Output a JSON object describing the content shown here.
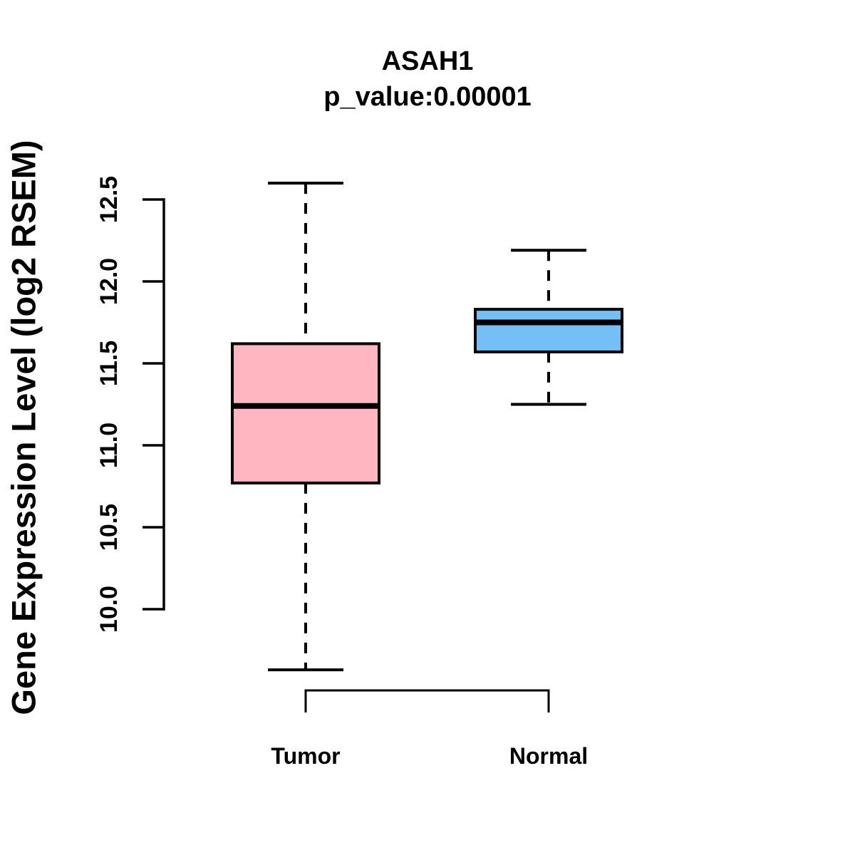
{
  "chart_data": {
    "type": "boxplot",
    "title": "ASAH1",
    "subtitle": "p_value:0.00001",
    "ylabel": "Gene Expression Level (log2 RSEM)",
    "xlabel": "",
    "categories": [
      "Tumor",
      "Normal"
    ],
    "yticks": [
      10.0,
      10.5,
      11.0,
      11.5,
      12.0,
      12.5
    ],
    "ytick_labels": [
      "10.0",
      "10.5",
      "11.0",
      "11.5",
      "12.0",
      "12.5"
    ],
    "ylim": [
      9.4,
      12.75
    ],
    "grid": false,
    "legend": null,
    "series": [
      {
        "name": "Tumor",
        "color": "#FFB6C1",
        "whisker_low": 9.63,
        "q1": 10.77,
        "median": 11.24,
        "q3": 11.62,
        "whisker_high": 12.6,
        "outliers": []
      },
      {
        "name": "Normal",
        "color": "#74BFF4",
        "whisker_low": 11.25,
        "q1": 11.57,
        "median": 11.75,
        "q3": 11.83,
        "whisker_high": 12.19,
        "outliers": []
      }
    ],
    "stroke_color": "#000000",
    "background_color": "#FFFFFF"
  }
}
